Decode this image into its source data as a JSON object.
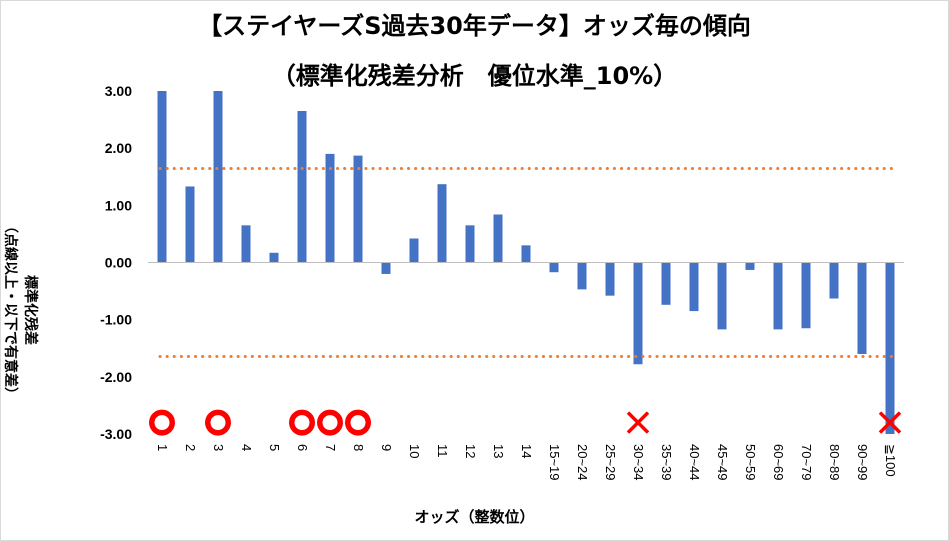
{
  "chart_data": {
    "type": "bar",
    "title": "【ステイヤーズS過去30年データ】オッズ毎の傾向",
    "subtitle": "（標準化残差分析　優位水準_10%）",
    "ylabel_line1": "標準化残差",
    "ylabel_line2": "（点線以上・以下で有意差）",
    "xlabel": "オッズ（整数位）",
    "ylim": [
      -3.0,
      3.0
    ],
    "yticks": [
      "3.00",
      "2.00",
      "1.00",
      "0.00",
      "-1.00",
      "-2.00",
      "-3.00"
    ],
    "ytick_values": [
      3,
      2,
      1,
      0,
      -1,
      -2,
      -3
    ],
    "categories": [
      "1",
      "2",
      "3",
      "4",
      "5",
      "6",
      "7",
      "8",
      "9",
      "10",
      "11",
      "12",
      "13",
      "14",
      "15~19",
      "20~24",
      "25~29",
      "30~34",
      "35~39",
      "40~44",
      "45~49",
      "50~59",
      "60~69",
      "70~79",
      "80~89",
      "90~99",
      "≧100"
    ],
    "values": [
      3.0,
      1.33,
      3.0,
      0.65,
      0.17,
      2.65,
      1.9,
      1.87,
      -0.2,
      0.42,
      1.37,
      0.65,
      0.84,
      0.3,
      -0.17,
      -0.47,
      -0.58,
      -1.78,
      -0.74,
      -0.85,
      -1.17,
      -0.13,
      -1.17,
      -1.15,
      -0.63,
      -1.6,
      -3.0
    ],
    "threshold_lines": [
      1.645,
      -1.645
    ],
    "markers": {
      "circle_categories": [
        "1",
        "3",
        "6",
        "7",
        "8"
      ],
      "cross_categories": [
        "30~34",
        "≧100"
      ],
      "marker_y": -2.8
    },
    "grid": false,
    "legend": "none",
    "colors": {
      "bar": "#4472C4",
      "threshold": "#ED7D31",
      "circle_fill": "#FF0000",
      "circle_ring": "#FFFFFF",
      "cross": "#FF0000",
      "axis": "#BFBFBF"
    }
  }
}
